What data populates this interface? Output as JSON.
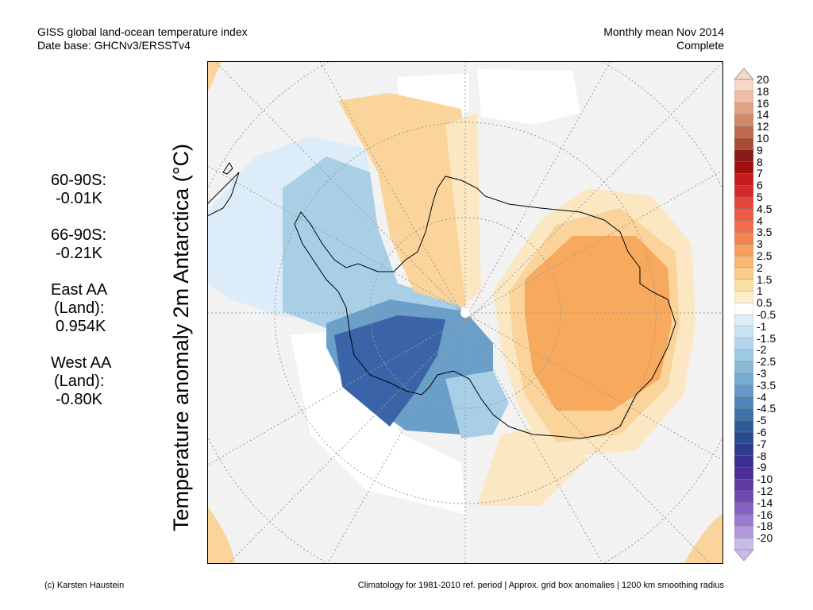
{
  "header": {
    "title_line1": "GISS global land-ocean temperature index",
    "title_line2": "Date base: GHCNv3/ERSSTv4",
    "period_line1": "Monthly mean Nov 2014",
    "period_line2": "Complete"
  },
  "stats": [
    {
      "label": "60-90S:",
      "value": "-0.01K"
    },
    {
      "label": "66-90S:",
      "value": "-0.21K"
    },
    {
      "label": "East AA",
      "label2": "(Land):",
      "value": "0.954K"
    },
    {
      "label": "West AA",
      "label2": "(Land):",
      "value": "-0.80K"
    }
  ],
  "axis_label": "Temperature anomaly 2m Antarctica (°C)",
  "colorbar": {
    "ticks": [
      "20",
      "18",
      "16",
      "14",
      "12",
      "10",
      "9",
      "8",
      "7",
      "6",
      "5",
      "4.5",
      "4",
      "3.5",
      "3",
      "2.5",
      "2",
      "1.5",
      "1",
      "0.5",
      "-0.5",
      "-1",
      "-1.5",
      "-2",
      "-2.5",
      "-3",
      "-3.5",
      "-4",
      "-4.5",
      "-5",
      "-6",
      "-7",
      "-8",
      "-9",
      "-10",
      "-12",
      "-14",
      "-16",
      "-18",
      "-20"
    ],
    "colors": [
      "#f7d7c8",
      "#edbda5",
      "#e0a284",
      "#d0896a",
      "#bd6a4d",
      "#a84c33",
      "#8b1a1a",
      "#a11010",
      "#c21c1c",
      "#d42a2a",
      "#e4453a",
      "#ec5a43",
      "#f06e4b",
      "#f38452",
      "#f7a05e",
      "#f9b873",
      "#fbcd8c",
      "#fbdfa6",
      "#fbeec8",
      "#ffffff",
      "#dcecf8",
      "#c8e3f3",
      "#b4d6ec",
      "#9fc8e3",
      "#8bbad9",
      "#77abcf",
      "#6399c4",
      "#4f86b8",
      "#3d71a9",
      "#2f5b98",
      "#2a4a8f",
      "#2b3d8a",
      "#3a2f8e",
      "#4b2d96",
      "#5d3aa3",
      "#7048b3",
      "#8560c4",
      "#9b7ad2",
      "#b299de",
      "#cbbbea"
    ]
  },
  "map_colors": {
    "ocean_background": "#f2f2f2",
    "strong_warm": "#f7a95e",
    "moderate_warm": "#fad49a",
    "light_warm": "#fbe7c2",
    "light_cool": "#dcecf8",
    "moderate_cool": "#a9cfe6",
    "strong_cool": "#6a9fca",
    "deep_cool": "#3b64a8",
    "near_zero": "#ffffff"
  },
  "footer": {
    "credit": "(c) Karsten Haustein",
    "note": "Climatology for 1981-2010 ref. period | Approx. grid box anomalies | 1200 km smoothing radius"
  }
}
